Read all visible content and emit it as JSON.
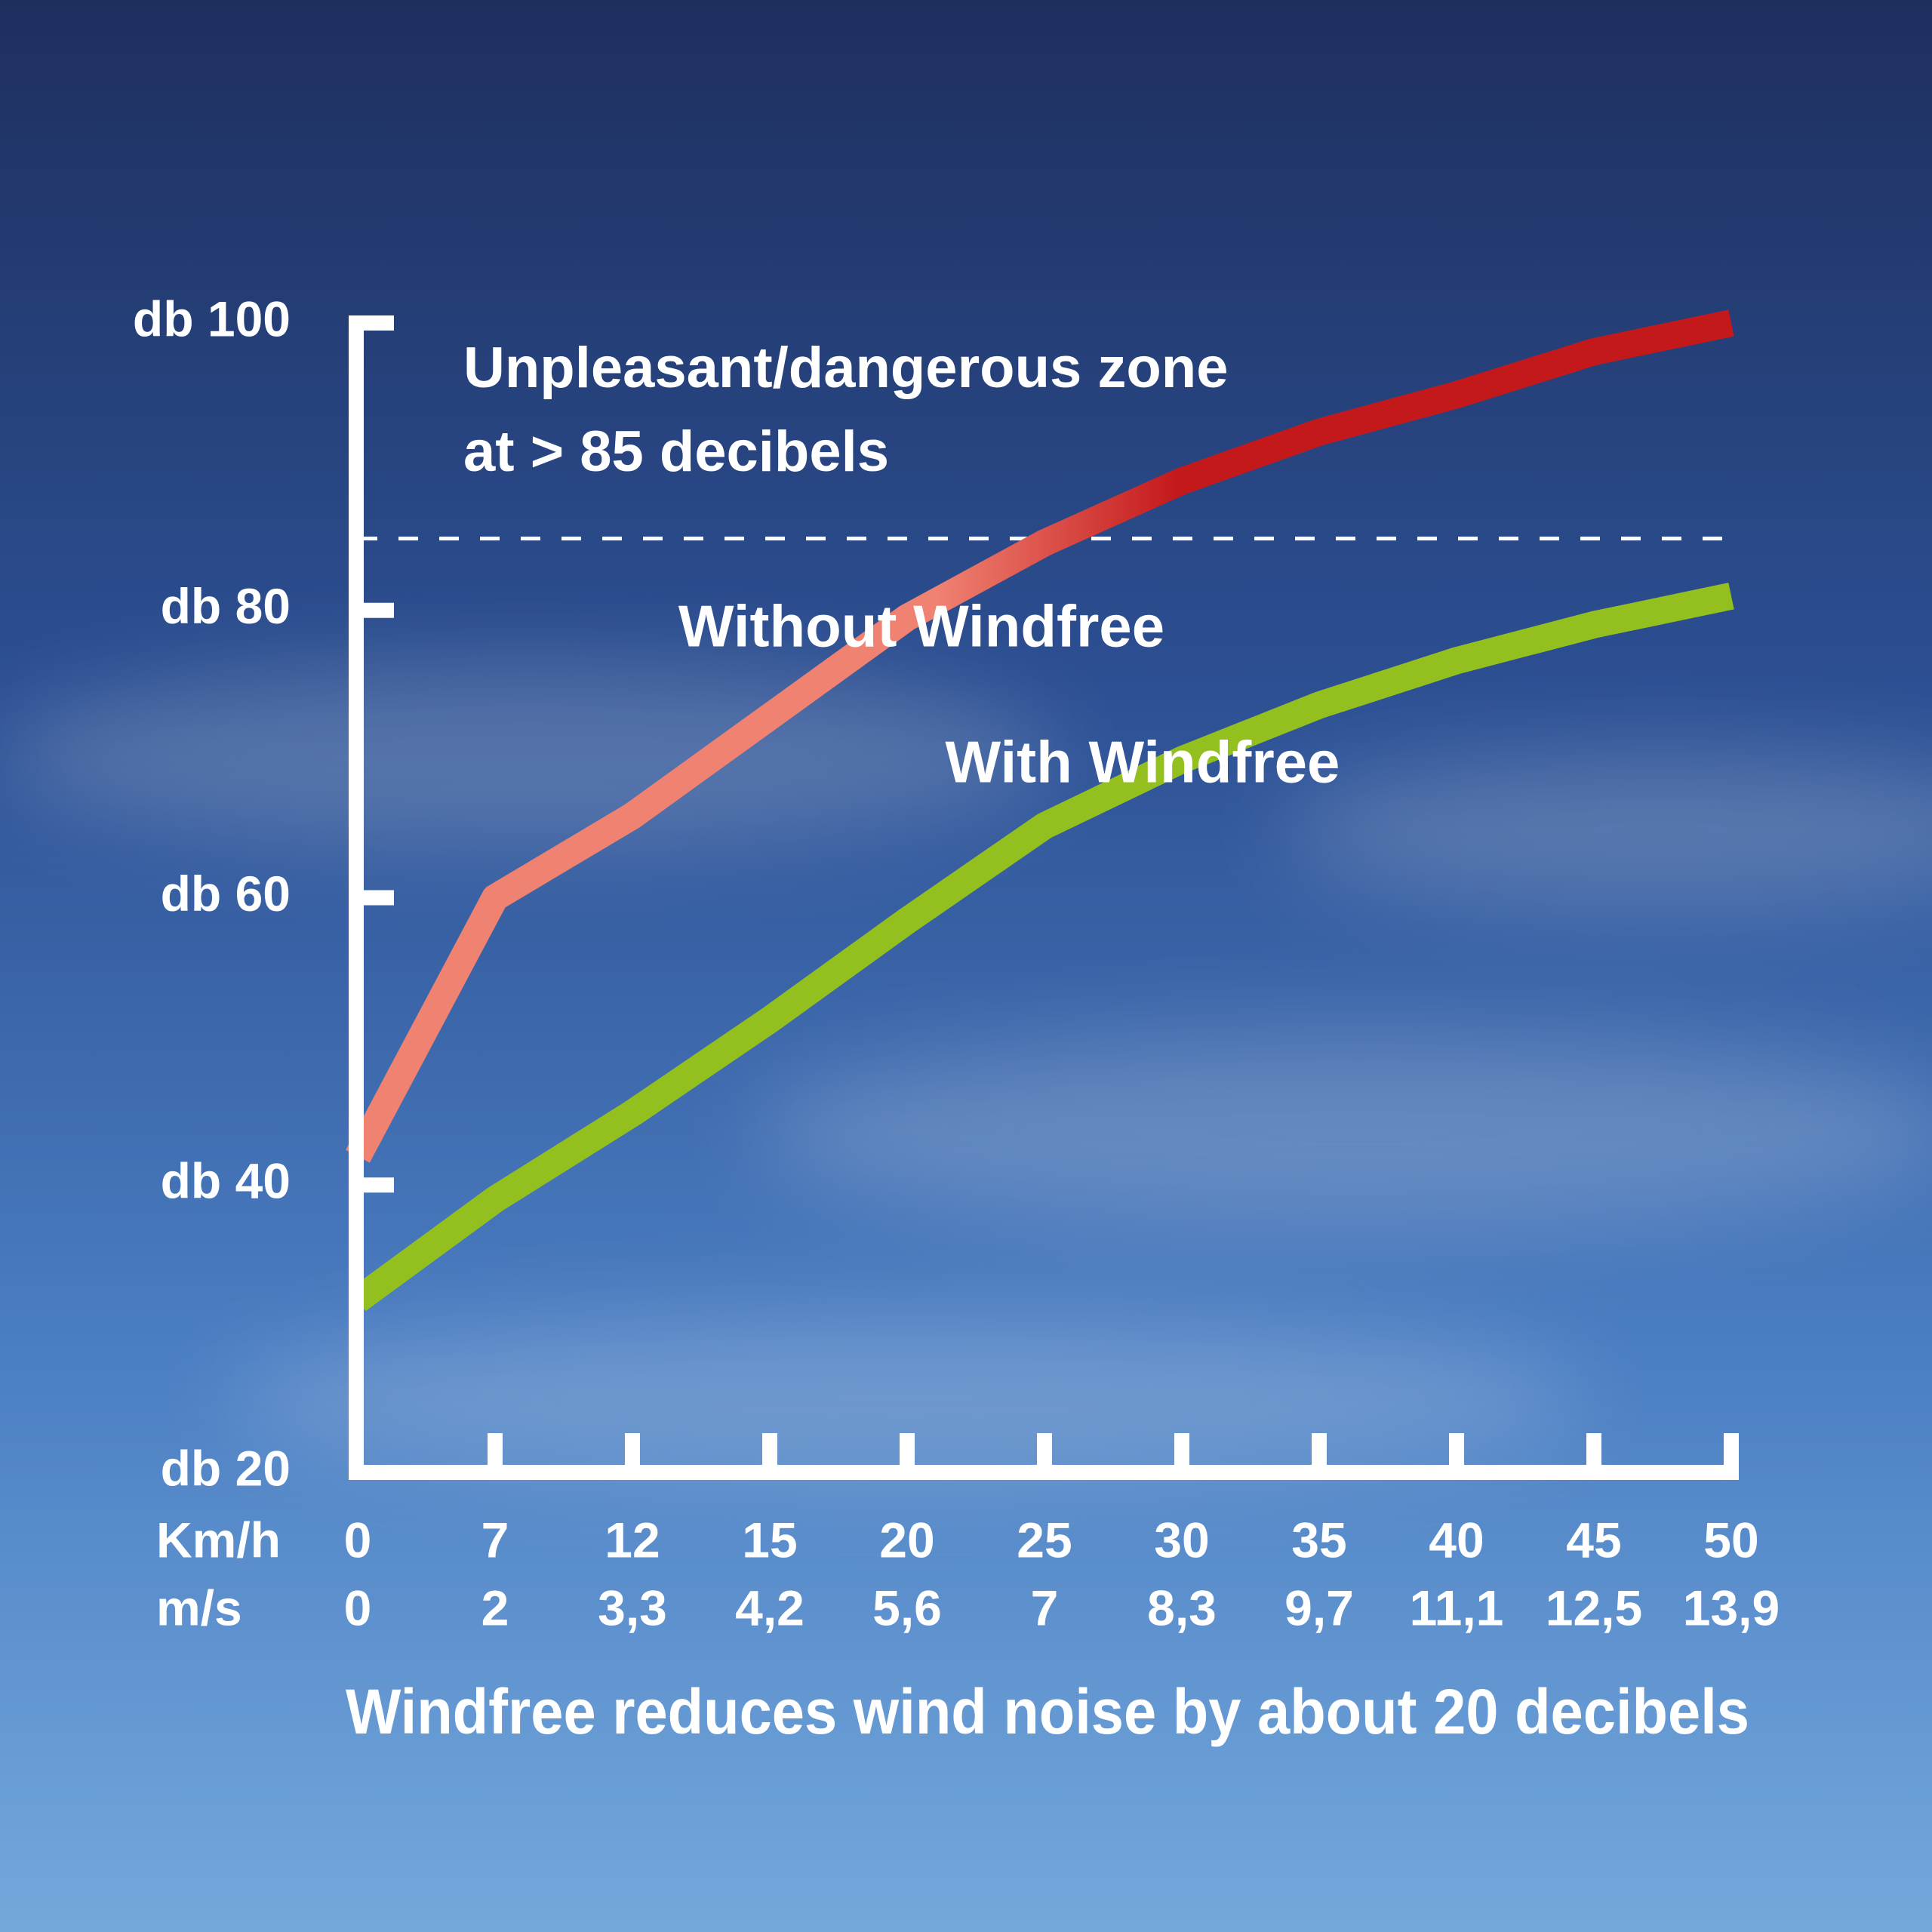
{
  "chart_data": {
    "type": "line",
    "annotation": [
      "Unpleasant/dangerous zone",
      "at > 85 decibels"
    ],
    "threshold": 85,
    "caption": "Windfree reduces wind noise by about 20 decibels",
    "x_label": "Km/h",
    "secondary_x_label": "m/s",
    "categories": [
      "0",
      "7",
      "12",
      "15",
      "20",
      "25",
      "30",
      "35",
      "40",
      "45",
      "50"
    ],
    "secondary_categories": [
      "0",
      "2",
      "3,3",
      "4,2",
      "5,6",
      "7",
      "8,3",
      "9,7",
      "11,1",
      "12,5",
      "13,9"
    ],
    "series": [
      {
        "name": "Without Windfree",
        "color": "#c4191b",
        "color_start": "#f08272",
        "values": [
          42,
          60,
          65.7,
          72.6,
          79.5,
          84.7,
          89,
          92.4,
          95,
          98,
          100
        ]
      },
      {
        "name": "With Windfree",
        "color": "#93c01f",
        "values": [
          32,
          39,
          45,
          51.5,
          58.4,
          65,
          69.6,
          73.4,
          76.5,
          79,
          81
        ]
      }
    ],
    "ylim": [
      20,
      100
    ],
    "yticks": [
      {
        "value": 20,
        "label": "db 20"
      },
      {
        "value": 40,
        "label": "db 40"
      },
      {
        "value": 60,
        "label": "db 60"
      },
      {
        "value": 80,
        "label": "db 80"
      },
      {
        "value": 100,
        "label": "db 100"
      }
    ],
    "axis_color": "#ffffff"
  }
}
